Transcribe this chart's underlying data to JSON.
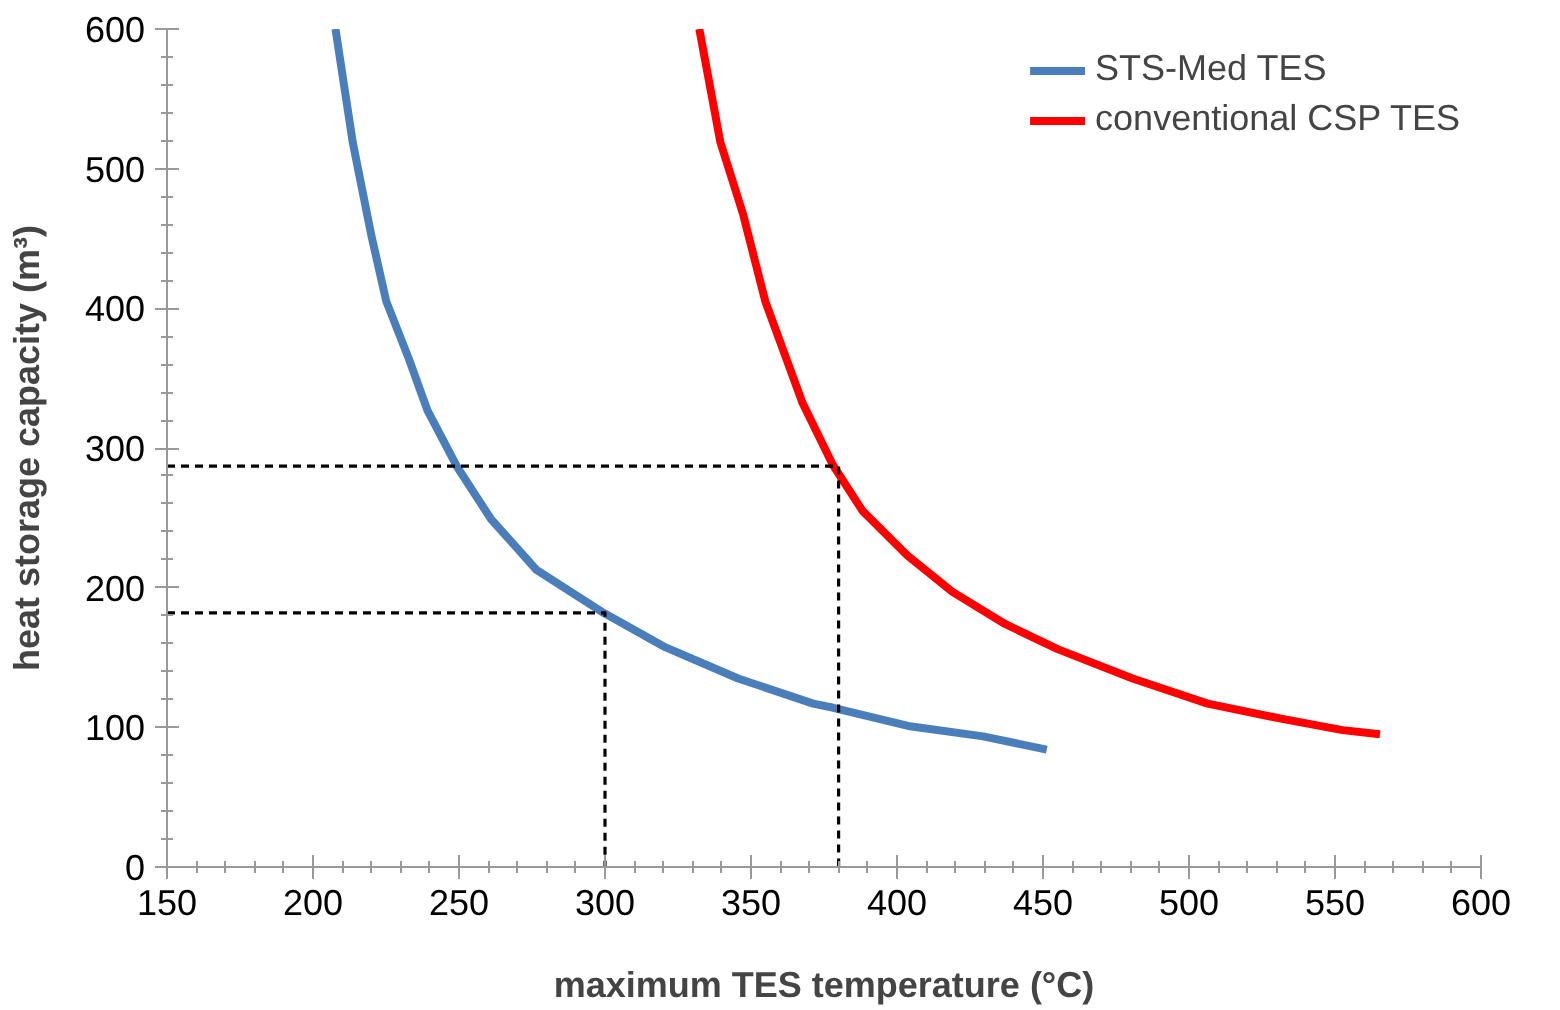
{
  "chart_data": {
    "type": "line",
    "xlabel": "maximum TES temperature (°C)",
    "ylabel": "heat storage capacity (m³)",
    "xlim": [
      150,
      600
    ],
    "ylim": [
      0,
      600
    ],
    "xticks": [
      150,
      200,
      250,
      300,
      350,
      400,
      450,
      500,
      550,
      600
    ],
    "yticks": [
      0,
      100,
      200,
      300,
      400,
      500,
      600
    ],
    "grid": false,
    "legend": "top right",
    "marker": "none",
    "line_style": "solid",
    "series": [
      {
        "name": "STS-Med TES",
        "color": "#4a7ebb",
        "x": [
          207.7,
          213.6,
          220,
          225.1,
          232.8,
          239.2,
          249.5,
          261,
          276.4,
          299.5,
          320,
          345.6,
          371.3,
          378.2,
          403.8,
          429.5,
          451.3
        ],
        "values": [
          600,
          519,
          452,
          405,
          364,
          327,
          286,
          249,
          213,
          182,
          158,
          135,
          117,
          114,
          101,
          93.5,
          84
        ]
      },
      {
        "name": "conventional CSP TES",
        "color": "#ff0000",
        "x": [
          332.3,
          339.5,
          347.2,
          354.9,
          367.7,
          378,
          388.2,
          403.6,
          419,
          437,
          455,
          480.7,
          506.4,
          532,
          552.6,
          565.4
        ],
        "values": [
          600,
          519,
          468,
          405,
          332,
          288,
          255,
          223,
          197,
          174,
          156,
          135,
          117,
          106,
          98,
          95
        ]
      },
      {
        "color": "#000000",
        "line_style": "dashed",
        "x": [
          150,
          380,
          380
        ],
        "values": [
          287,
          287,
          0
        ]
      },
      {
        "color": "#000000",
        "line_style": "dashed",
        "x": [
          150,
          300,
          300
        ],
        "values": [
          182,
          182,
          0
        ]
      }
    ]
  }
}
